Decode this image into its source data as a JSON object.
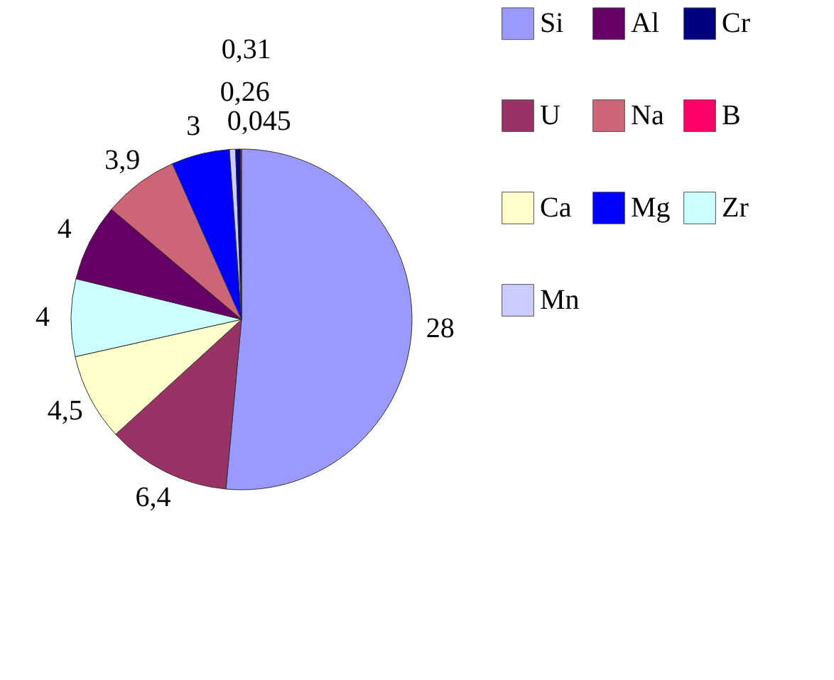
{
  "chart_data": {
    "type": "pie",
    "categories": [
      "Si",
      "U",
      "Ca",
      "Zr",
      "Al",
      "Na",
      "Mg",
      "Mn",
      "Cr",
      "B"
    ],
    "values": [
      28,
      6.4,
      4.5,
      4,
      4,
      3.9,
      3,
      0.31,
      0.26,
      0.045
    ],
    "value_labels": [
      "28",
      "6,4",
      "4,5",
      "4",
      "4",
      "3,9",
      "3",
      "0,31",
      "0,26",
      "0,045"
    ],
    "colors": [
      "#9999ff",
      "#993366",
      "#ffffcc",
      "#ccffff",
      "#660066",
      "#cc6677",
      "#0000ff",
      "#ccccff",
      "#000080",
      "#ff0066"
    ],
    "legend": "right"
  }
}
